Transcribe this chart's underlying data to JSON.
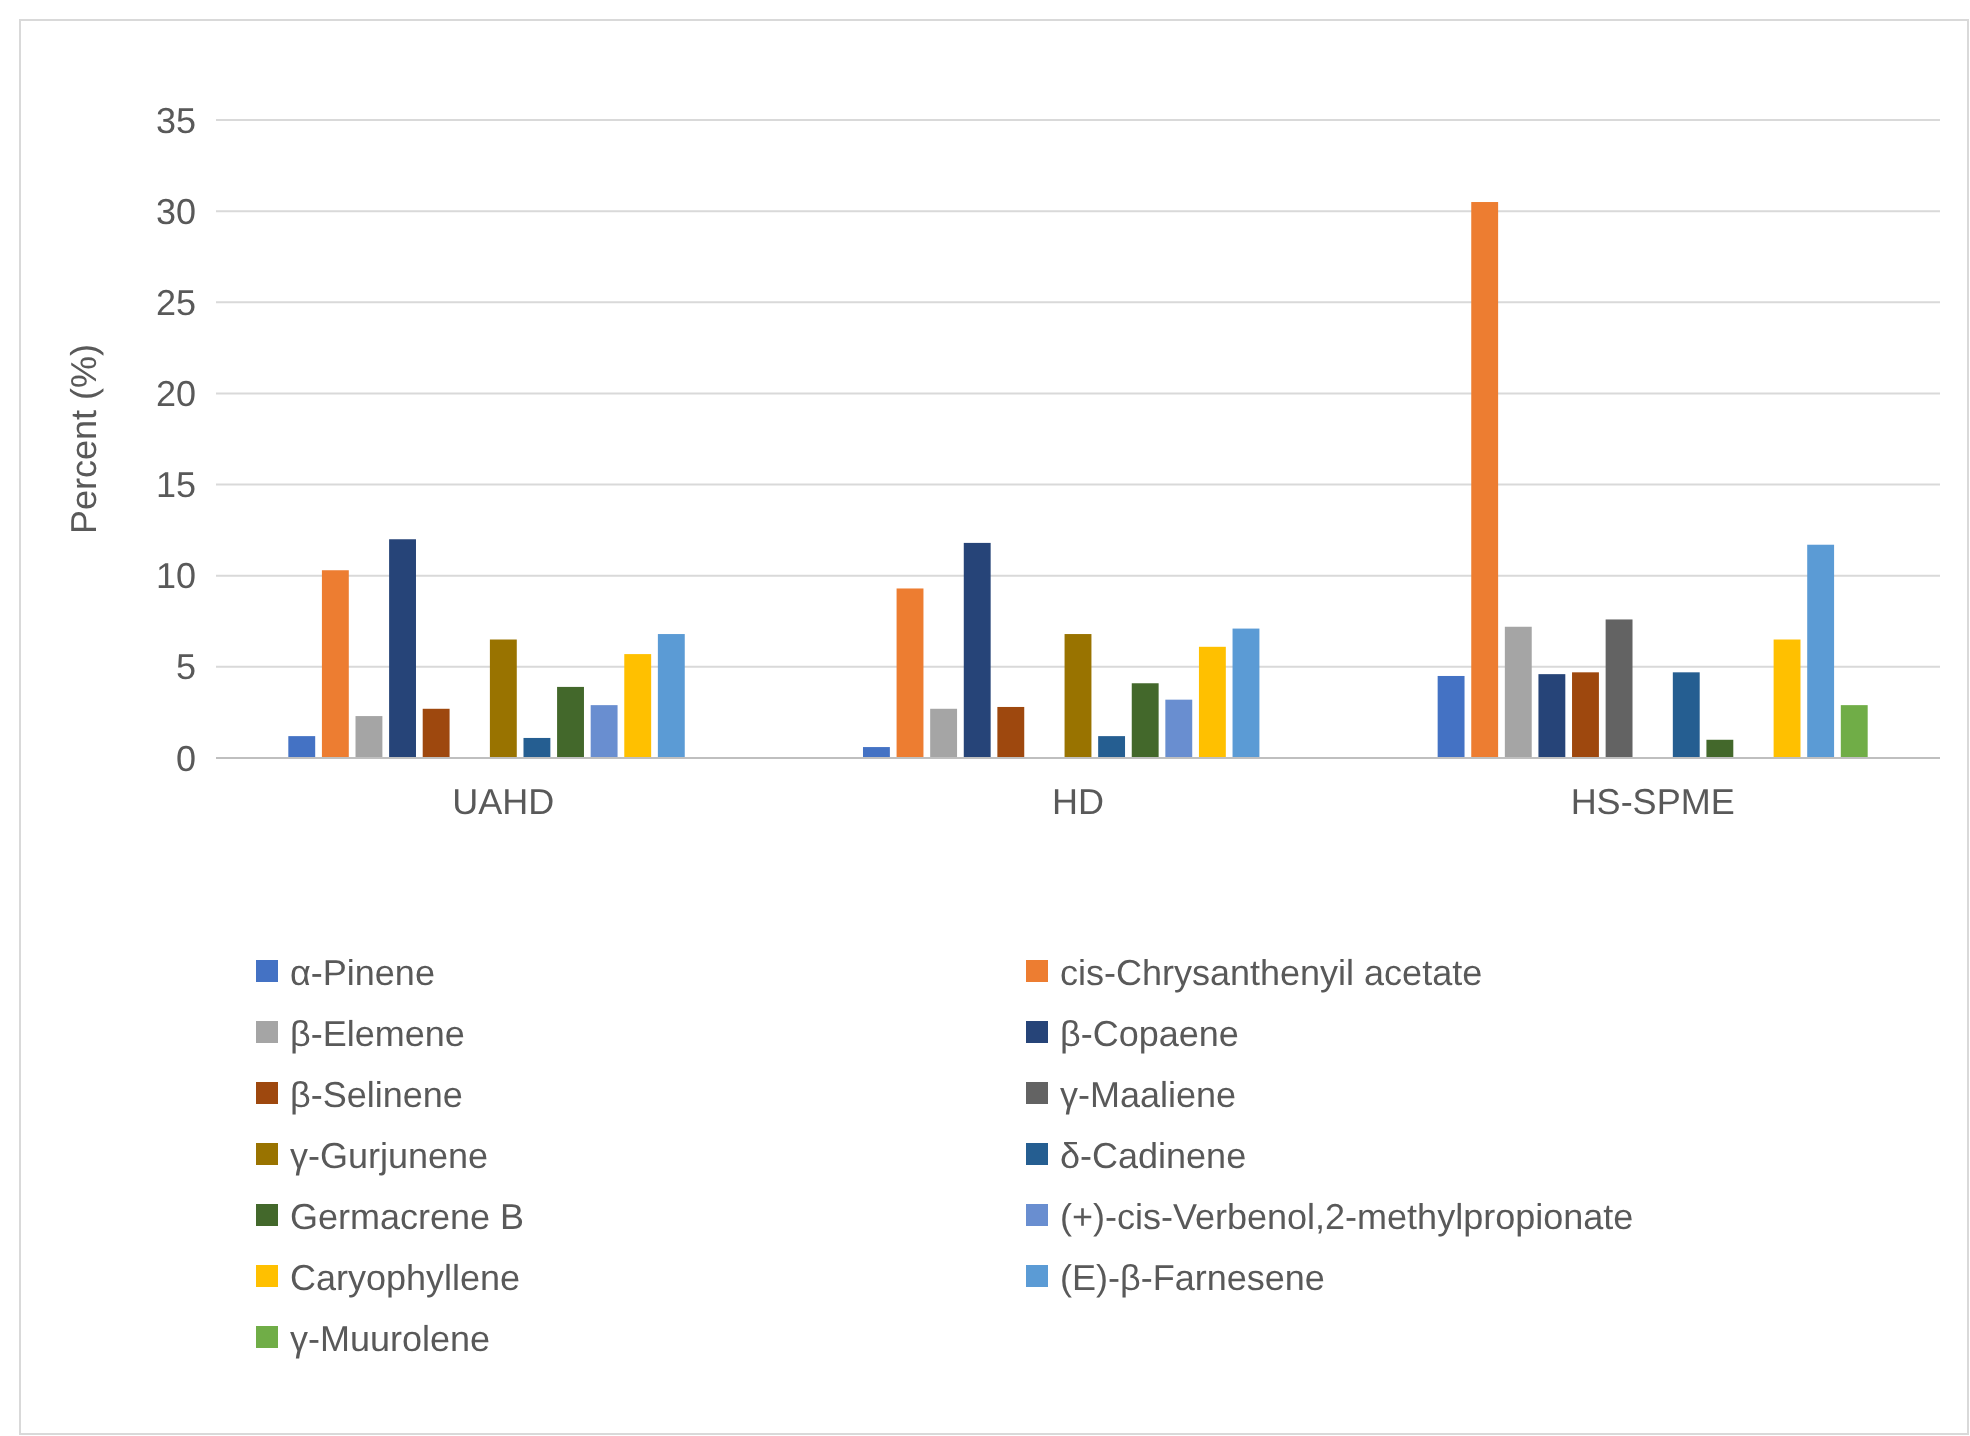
{
  "chart_data": {
    "type": "bar",
    "ylabel": "Percent (%)",
    "categories": [
      "UAHD",
      "HD",
      "HS-SPME"
    ],
    "ylim": [
      0,
      35
    ],
    "yticks": [
      0,
      5,
      10,
      15,
      20,
      25,
      30,
      35
    ],
    "grid": "y",
    "legend": "bottom",
    "series": [
      {
        "name": "α-Pinene",
        "color": "#4472c4",
        "values": [
          1.2,
          0.6,
          4.5
        ]
      },
      {
        "name": "cis-Chrysanthenyil acetate",
        "color": "#ed7d31",
        "values": [
          10.3,
          9.3,
          30.5
        ]
      },
      {
        "name": "β-Elemene",
        "color": "#a5a5a5",
        "values": [
          2.3,
          2.7,
          7.2
        ]
      },
      {
        "name": "β-Copaene",
        "color": "#264478",
        "values": [
          12.0,
          11.8,
          4.6
        ]
      },
      {
        "name": "β-Selinene",
        "color": "#9e480e",
        "values": [
          2.7,
          2.8,
          4.7
        ]
      },
      {
        "name": "γ-Maaliene",
        "color": "#636363",
        "values": [
          0,
          0,
          7.6
        ]
      },
      {
        "name": "γ-Gurjunene",
        "color": "#997300",
        "values": [
          6.5,
          6.8,
          0
        ]
      },
      {
        "name": "δ-Cadinene",
        "color": "#255e91",
        "values": [
          1.1,
          1.2,
          4.7
        ]
      },
      {
        "name": "Germacrene B",
        "color": "#43682b",
        "values": [
          3.9,
          4.1,
          1.0
        ]
      },
      {
        "name": "(+)-cis-Verbenol,2-methylpropionate",
        "color": "#698ed0",
        "values": [
          2.9,
          3.2,
          0
        ]
      },
      {
        "name": "Caryophyllene",
        "color": "#ffc000",
        "values": [
          5.7,
          6.1,
          6.5
        ]
      },
      {
        "name": "(E)-β-Farnesene",
        "color": "#5b9bd5",
        "values": [
          6.8,
          7.1,
          11.7
        ]
      },
      {
        "name": "γ-Muurolene",
        "color": "#70ad47",
        "values": [
          0,
          0,
          2.9
        ]
      }
    ]
  }
}
